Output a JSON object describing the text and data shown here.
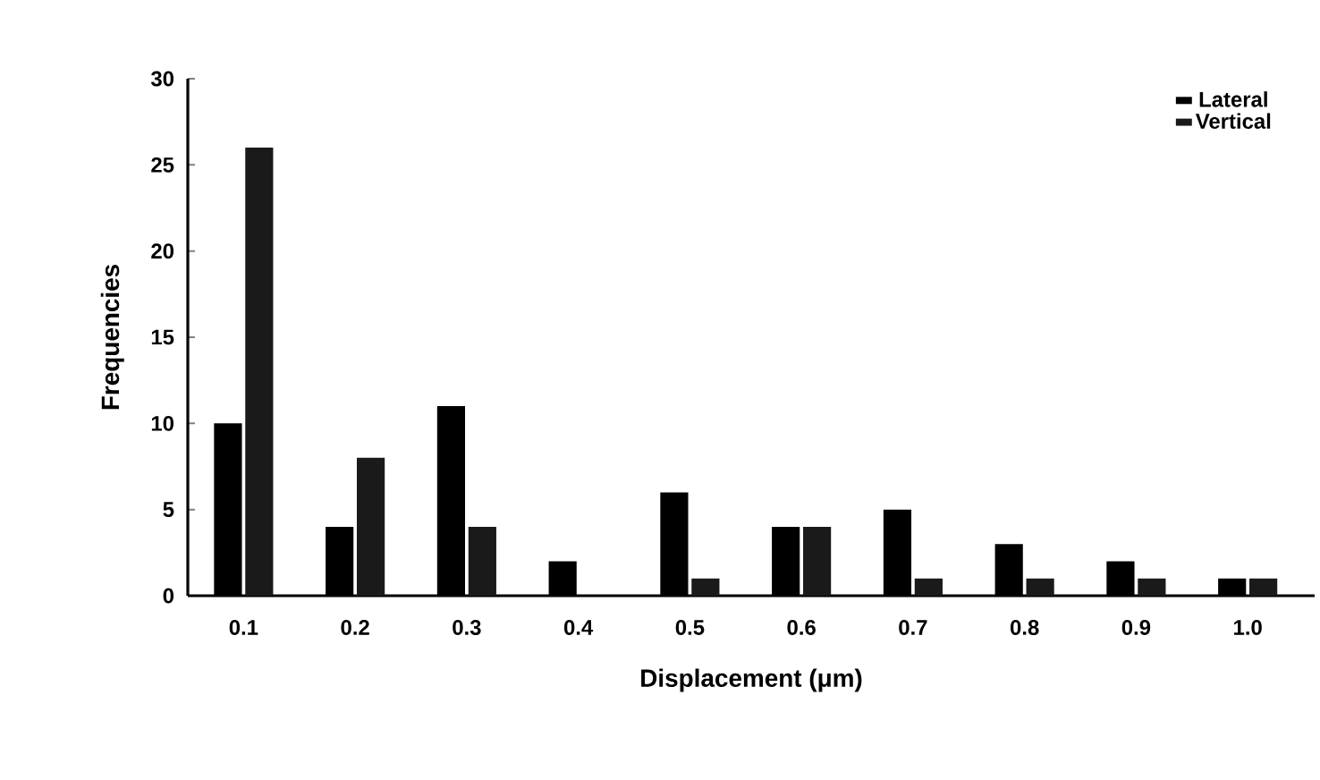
{
  "chart_data": {
    "type": "bar",
    "xlabel": "Displacement (μm)",
    "ylabel": "Frequencies",
    "categories": [
      "0.1",
      "0.2",
      "0.3",
      "0.4",
      "0.5",
      "0.6",
      "0.7",
      "0.8",
      "0.9",
      "1.0"
    ],
    "series": [
      {
        "name": "Lateral",
        "color": "#000000",
        "values": [
          10,
          4,
          11,
          2,
          6,
          4,
          5,
          3,
          2,
          1
        ]
      },
      {
        "name": "Vertical",
        "color": "#1a1a1a",
        "values": [
          26,
          8,
          4,
          0,
          1,
          4,
          1,
          1,
          1,
          1
        ]
      }
    ],
    "ylim": [
      0,
      30
    ],
    "yticks": [
      0,
      5,
      10,
      15,
      20,
      25,
      30
    ],
    "legend": "top right",
    "grid": false
  }
}
